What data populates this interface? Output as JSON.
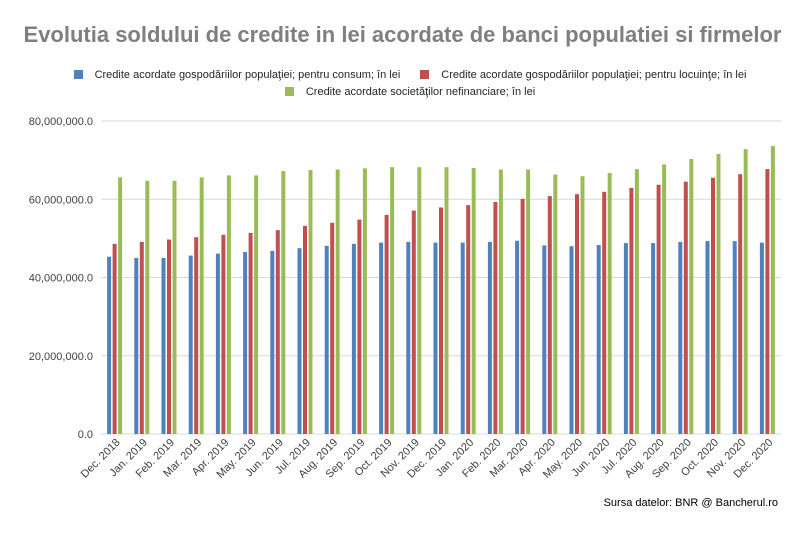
{
  "colors": {
    "series": [
      "#4f81bd",
      "#c0504d",
      "#9bbb59"
    ],
    "grid": "#d9d9d9",
    "axis_text": "#404040"
  },
  "chart_data": {
    "type": "bar",
    "title": "Evolutia soldului de credite in lei acordate de banci populatiei si firmelor",
    "xlabel": "",
    "ylabel": "",
    "ylim": [
      0,
      80000000
    ],
    "y_ticks": [
      "0.0",
      "20,000,000.0",
      "40,000,000.0",
      "60,000,000.0",
      "80,000,000.0"
    ],
    "grid": true,
    "legend_position": "top",
    "categories": [
      "Dec. 2018",
      "Jan. 2019",
      "Feb. 2019",
      "Mar. 2019",
      "Apr. 2019",
      "May. 2019",
      "Jun. 2019",
      "Jul. 2019",
      "Aug. 2019",
      "Sep. 2019",
      "Oct. 2019",
      "Nov. 2019",
      "Dec. 2019",
      "Jan. 2020",
      "Feb. 2020",
      "Mar. 2020",
      "Apr. 2020",
      "May. 2020",
      "Jun. 2020",
      "Jul. 2020",
      "Aug. 2020",
      "Sep. 2020",
      "Oct. 2020",
      "Nov. 2020",
      "Dec. 2020"
    ],
    "series": [
      {
        "name": "Credite acordate gospodăriilor populaţiei; pentru consum; în lei",
        "values": [
          45300000,
          45000000,
          45000000,
          45600000,
          46100000,
          46500000,
          46800000,
          47500000,
          48100000,
          48600000,
          48900000,
          49100000,
          48900000,
          48900000,
          49100000,
          49400000,
          48200000,
          48000000,
          48300000,
          48800000,
          48800000,
          49100000,
          49300000,
          49300000,
          48900000
        ]
      },
      {
        "name": "Credite acordate gospodăriilor populaţiei; pentru locuinţe; în lei",
        "values": [
          48600000,
          49100000,
          49700000,
          50300000,
          50900000,
          51400000,
          52100000,
          53200000,
          54000000,
          54800000,
          56000000,
          57100000,
          57900000,
          58500000,
          59300000,
          60100000,
          60800000,
          61300000,
          61900000,
          62900000,
          63700000,
          64500000,
          65500000,
          66400000,
          67700000
        ]
      },
      {
        "name": "Credite acordate societăţilor nefinanciare; în lei",
        "values": [
          65600000,
          64700000,
          64700000,
          65600000,
          66100000,
          66100000,
          67200000,
          67500000,
          67600000,
          67900000,
          68200000,
          68200000,
          68200000,
          68000000,
          67600000,
          67600000,
          66300000,
          65900000,
          66700000,
          67700000,
          68900000,
          70300000,
          71600000,
          72800000,
          73600000
        ]
      }
    ]
  },
  "source": "Sursa datelor: BNR @ Bancherul.ro"
}
